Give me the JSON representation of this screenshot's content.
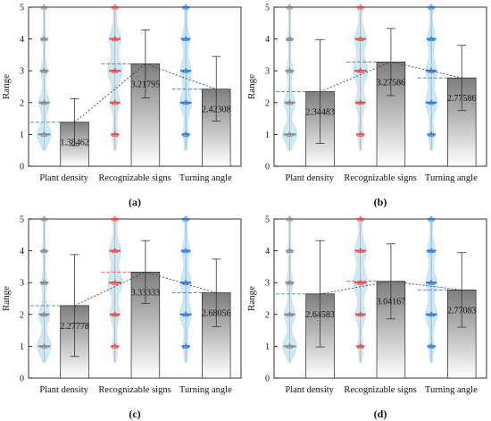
{
  "chart_data": [
    {
      "type": "bar",
      "panel_label": "(a)",
      "ylabel": "Range",
      "ylim": [
        0,
        5
      ],
      "yticks": [
        0,
        1,
        2,
        3,
        4,
        5
      ],
      "categories": [
        "Plant density",
        "Recognizable signs",
        "Turning angle"
      ],
      "values": [
        1.38462,
        3.21795,
        2.42308
      ],
      "value_labels": [
        "1.38462",
        "3.21795",
        "2.42308"
      ],
      "error_low": [
        0.65,
        2.15,
        1.42
      ],
      "error_high": [
        2.12,
        4.28,
        3.45
      ],
      "violin_colors": [
        "#888888",
        "#e05050",
        "#3a78d8"
      ],
      "violin_fill": "#cdeaf4",
      "bar_gradient": [
        "#7d7d7d",
        "#ffffff"
      ]
    },
    {
      "type": "bar",
      "panel_label": "(b)",
      "ylabel": "Range",
      "ylim": [
        0,
        5
      ],
      "yticks": [
        0,
        1,
        2,
        3,
        4,
        5
      ],
      "categories": [
        "Plant density",
        "Recognizable signs",
        "Turning angle"
      ],
      "values": [
        2.34483,
        3.27586,
        2.77586
      ],
      "value_labels": [
        "2.34483",
        "3.27586",
        "2.77586"
      ],
      "error_low": [
        0.72,
        2.22,
        1.75
      ],
      "error_high": [
        3.98,
        4.33,
        3.8
      ],
      "violin_colors": [
        "#888888",
        "#e05050",
        "#3a78d8"
      ],
      "violin_fill": "#cdeaf4",
      "bar_gradient": [
        "#7d7d7d",
        "#ffffff"
      ]
    },
    {
      "type": "bar",
      "panel_label": "(c)",
      "ylabel": "Range",
      "ylim": [
        0,
        5
      ],
      "yticks": [
        0,
        1,
        2,
        3,
        4,
        5
      ],
      "categories": [
        "Plant density",
        "Recognizable signs",
        "Turning angle"
      ],
      "values": [
        2.27778,
        3.33333,
        2.68056
      ],
      "value_labels": [
        "2.27778",
        "3.33333",
        "2.68056"
      ],
      "error_low": [
        0.68,
        2.35,
        1.62
      ],
      "error_high": [
        3.88,
        4.32,
        3.74
      ],
      "violin_colors": [
        "#888888",
        "#e05050",
        "#3a78d8"
      ],
      "violin_fill": "#cdeaf4",
      "bar_gradient": [
        "#7d7d7d",
        "#ffffff"
      ]
    },
    {
      "type": "bar",
      "panel_label": "(d)",
      "ylabel": "Range",
      "ylim": [
        0,
        5
      ],
      "yticks": [
        0,
        1,
        2,
        3,
        4,
        5
      ],
      "categories": [
        "Plant density",
        "Recognizable signs",
        "Turning angle"
      ],
      "values": [
        2.64583,
        3.04167,
        2.77083
      ],
      "value_labels": [
        "2.64583",
        "3.04167",
        "2.77083"
      ],
      "error_low": [
        0.98,
        1.86,
        1.6
      ],
      "error_high": [
        4.32,
        4.22,
        3.94
      ],
      "violin_colors": [
        "#888888",
        "#e05050",
        "#3a78d8"
      ],
      "violin_fill": "#cdeaf4",
      "bar_gradient": [
        "#7d7d7d",
        "#ffffff"
      ]
    }
  ]
}
